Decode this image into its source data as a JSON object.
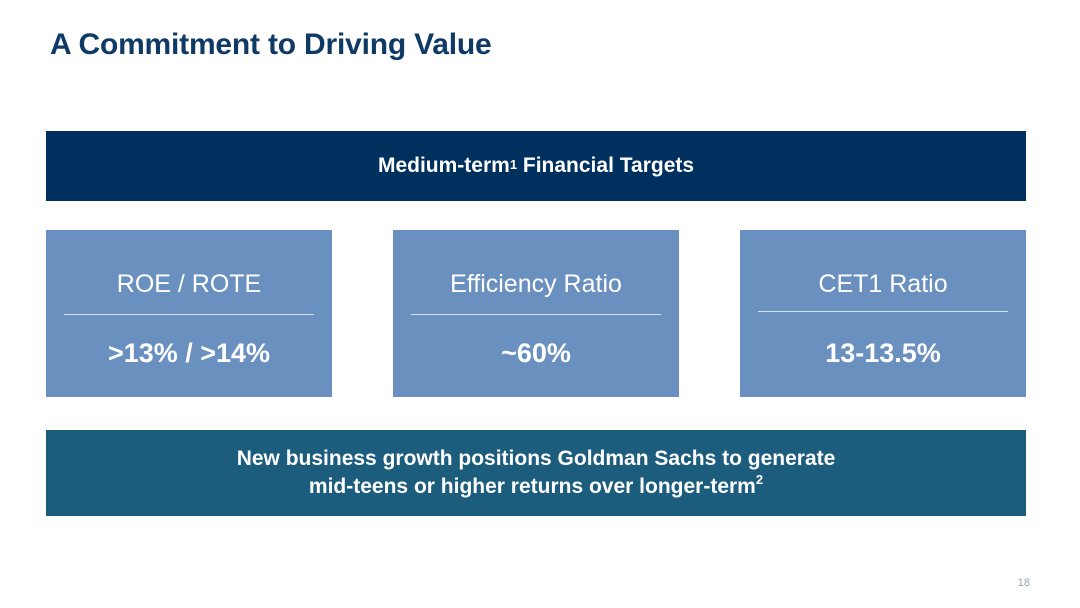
{
  "slide": {
    "title": "A Commitment to Driving Value",
    "page_number": "18"
  },
  "banner": {
    "text_before": "Medium-term",
    "footnote": "1",
    "text_after": " Financial Targets"
  },
  "targets": [
    {
      "label": "ROE / ROTE",
      "value": ">13% / >14%"
    },
    {
      "label": "Efficiency Ratio",
      "value": "~60%"
    },
    {
      "label": "CET1 Ratio",
      "value": "13-13.5%"
    }
  ],
  "footer": {
    "line1": "New business growth positions Goldman Sachs to generate",
    "line2_text": "mid-teens or higher returns over longer-term",
    "line2_footnote": "2"
  },
  "colors": {
    "title": "#0f3a66",
    "banner_bg": "#00305e",
    "card_bg": "#6990bf",
    "footer_bg": "#1c5c7d"
  }
}
